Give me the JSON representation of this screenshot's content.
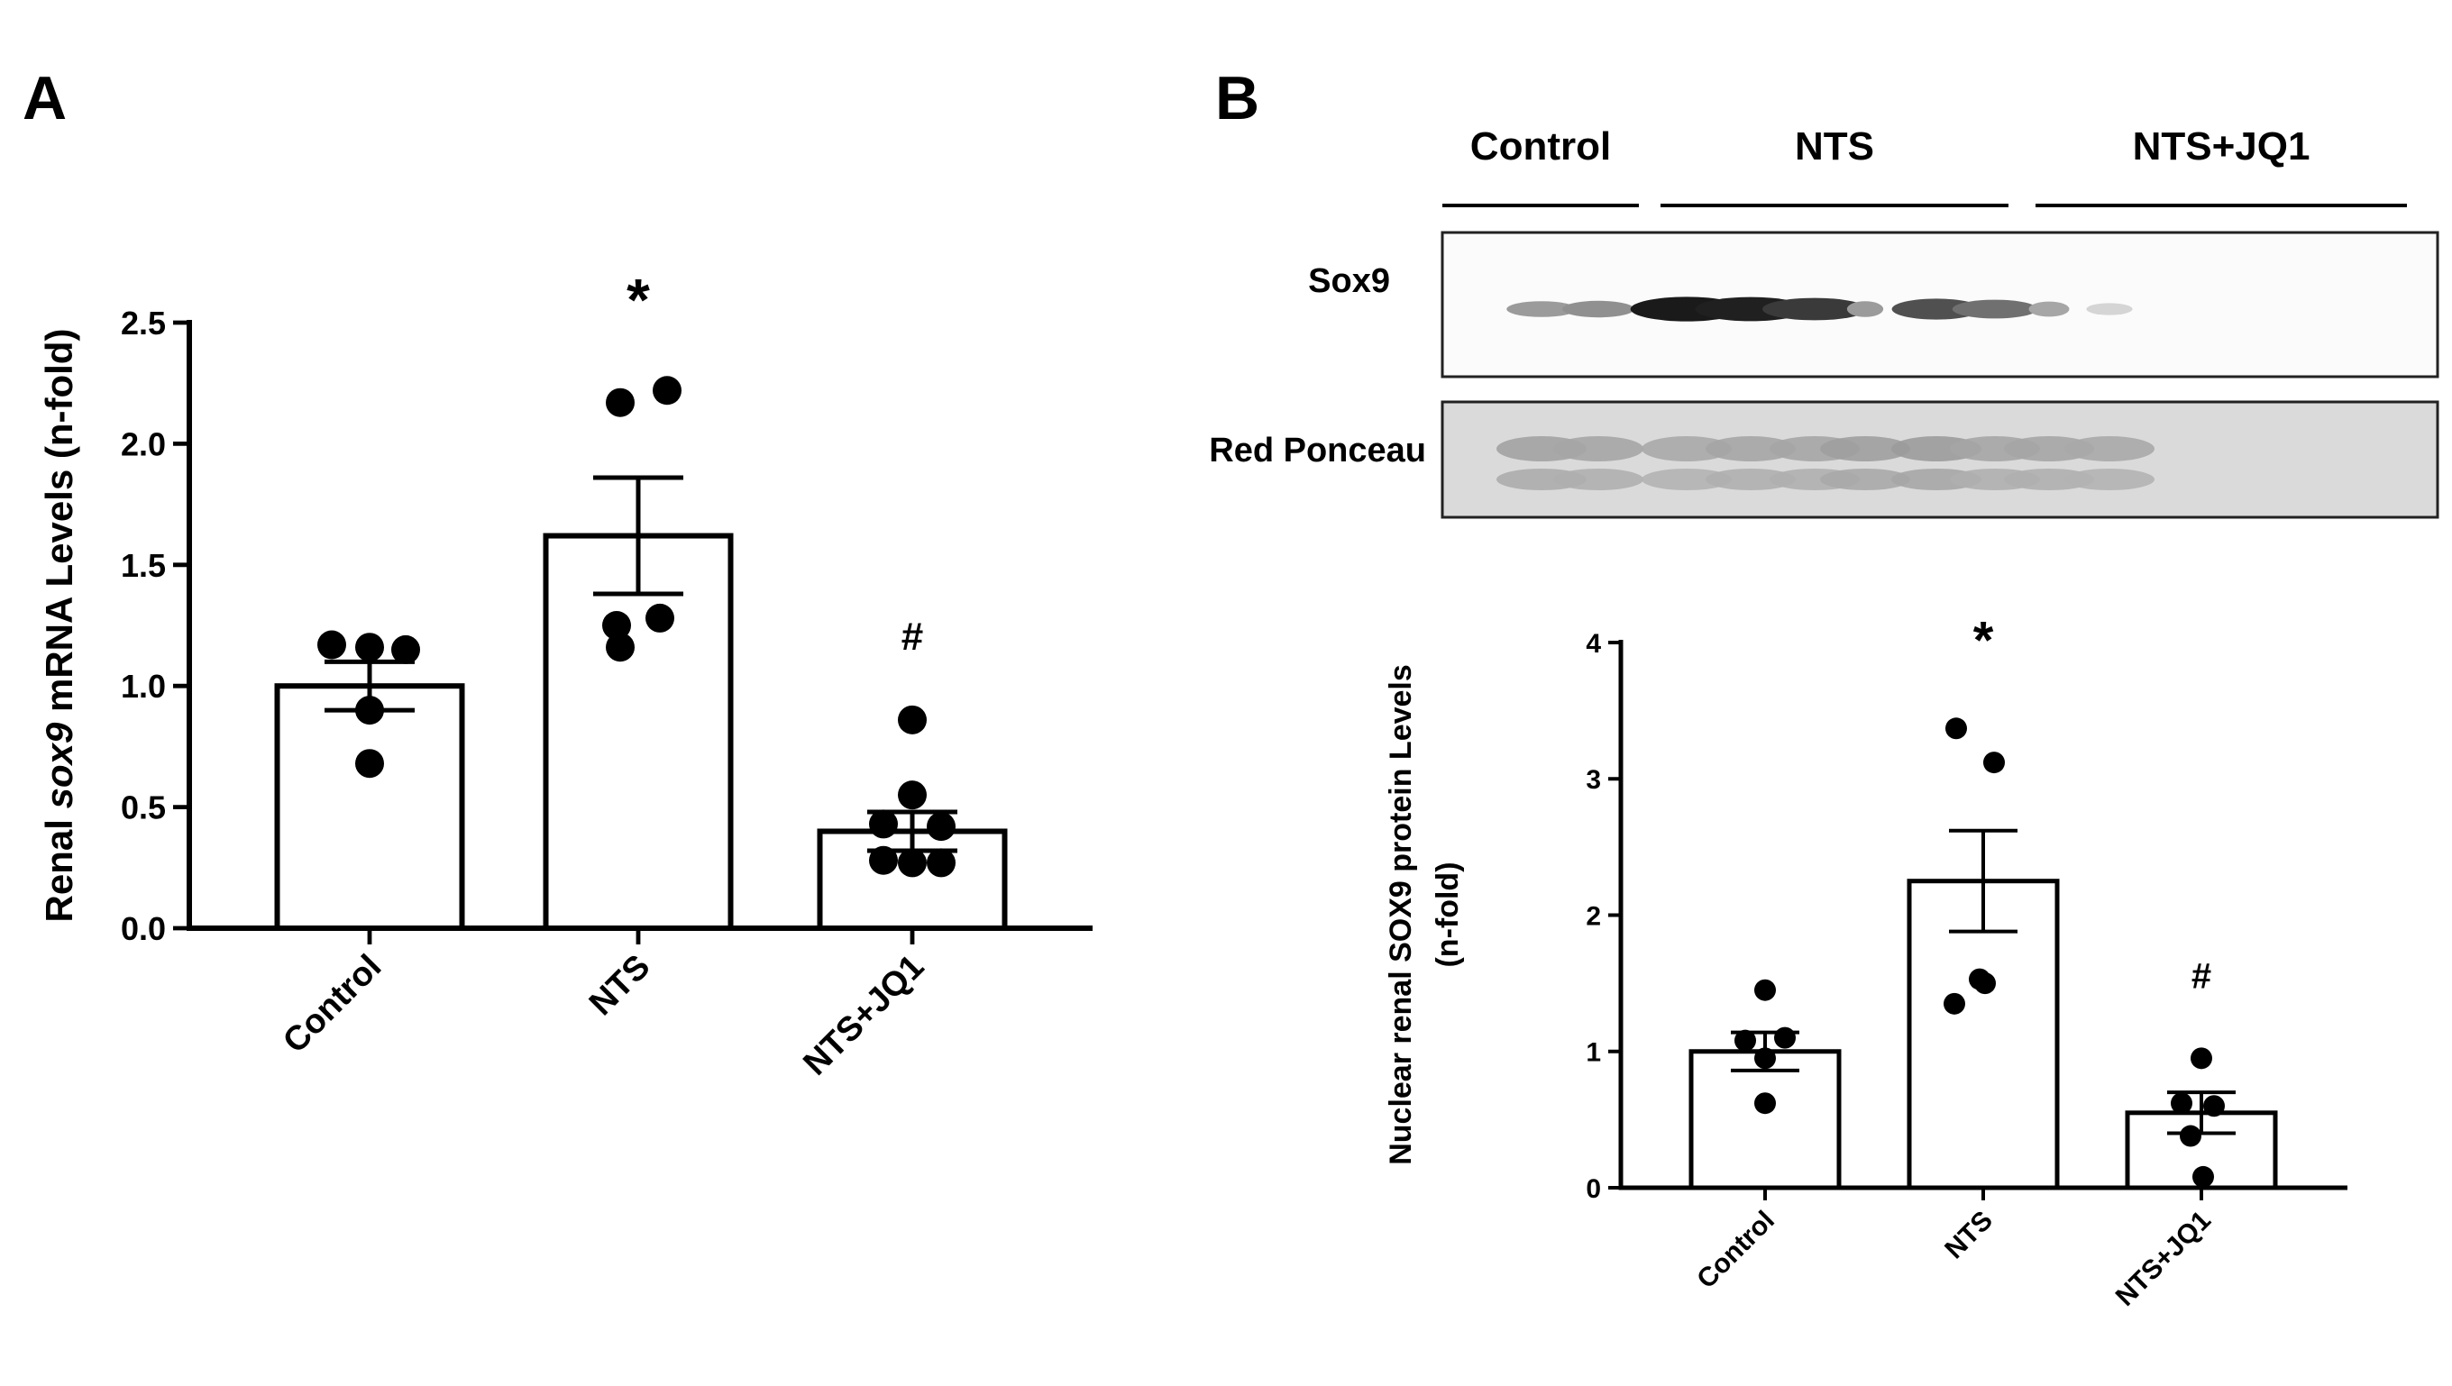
{
  "panels": {
    "A": {
      "label": "A"
    },
    "B": {
      "label": "B",
      "blot": {
        "groups": [
          {
            "label": "Control",
            "lanes": 2
          },
          {
            "label": "NTS",
            "lanes": 4
          },
          {
            "label": "NTS+JQ1",
            "lanes": 4
          }
        ],
        "rows": [
          "Sox9",
          "Red Ponceau"
        ],
        "sox9_lane_intensity": [
          0.35,
          0.4,
          0.95,
          0.92,
          0.8,
          0.35,
          0.7,
          0.55,
          0.3,
          0.08
        ],
        "ponceau_lane_intensity": [
          0.55,
          0.5,
          0.45,
          0.5,
          0.5,
          0.6,
          0.65,
          0.5,
          0.5,
          0.45
        ]
      }
    }
  },
  "chart_data": [
    {
      "panel": "A",
      "type": "bar",
      "title": "",
      "xlabel": "",
      "ylabel_parts": [
        "Renal ",
        "sox9",
        " mRNA Levels (n-fold)"
      ],
      "ylim": [
        0,
        2.5
      ],
      "yticks": [
        "0.0",
        "0.5",
        "1.0",
        "1.5",
        "2.0",
        "2.5"
      ],
      "categories": [
        "Control",
        "NTS",
        "NTS+JQ1"
      ],
      "values": [
        1.0,
        1.62,
        0.4
      ],
      "sem": [
        0.1,
        0.24,
        0.08
      ],
      "annotations": [
        "",
        "*",
        "#"
      ],
      "points": [
        [
          1.17,
          1.15,
          1.16,
          0.9,
          0.68
        ],
        [
          2.22,
          2.17,
          1.28,
          1.25,
          1.16
        ],
        [
          0.86,
          0.55,
          0.43,
          0.42,
          0.28,
          0.27,
          0.27
        ]
      ]
    },
    {
      "panel": "B",
      "type": "bar",
      "title": "",
      "xlabel": "",
      "ylabel_lines": [
        "Nuclear renal SOX9 protein Levels",
        "(n-fold)"
      ],
      "ylim": [
        0,
        4
      ],
      "yticks": [
        "0",
        "1",
        "2",
        "3",
        "4"
      ],
      "categories": [
        "Control",
        "NTS",
        "NTS+JQ1"
      ],
      "values": [
        1.0,
        2.25,
        0.55
      ],
      "sem": [
        0.14,
        0.37,
        0.15
      ],
      "annotations": [
        "",
        "*",
        "#"
      ],
      "points": [
        [
          1.45,
          1.1,
          1.08,
          0.95,
          0.62
        ],
        [
          3.37,
          3.12,
          1.53,
          1.5,
          1.35
        ],
        [
          0.95,
          0.62,
          0.6,
          0.38,
          0.08
        ]
      ]
    }
  ]
}
